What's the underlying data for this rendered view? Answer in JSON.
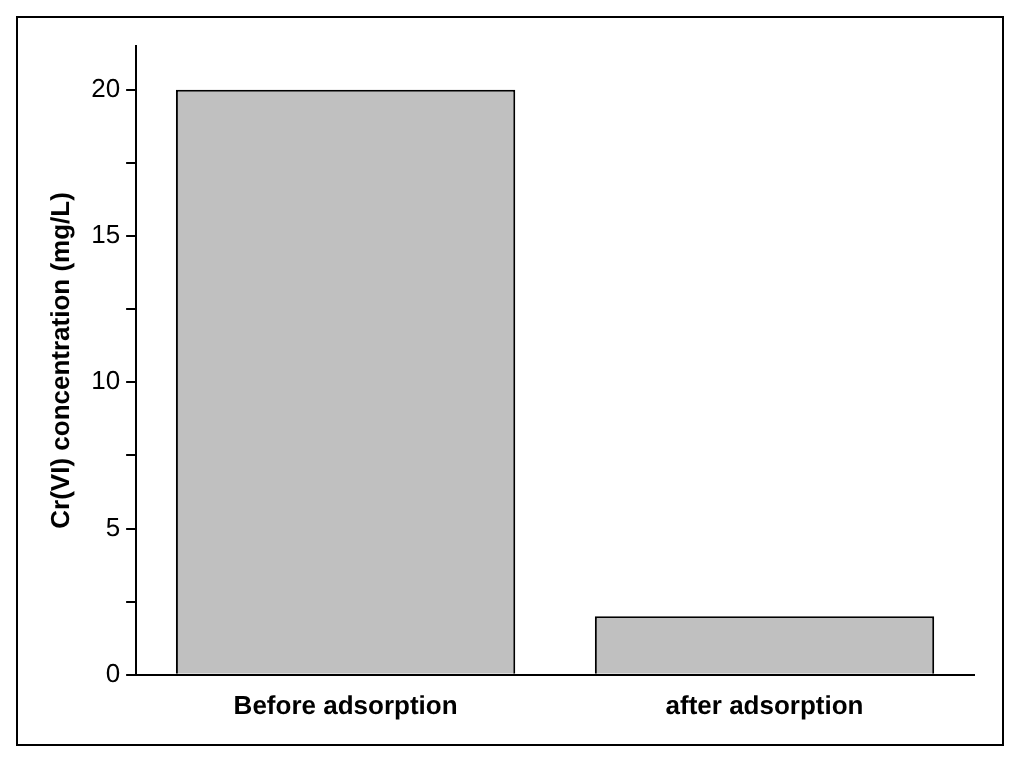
{
  "chart_data": {
    "type": "bar",
    "ylabel": "Cr(VI) concentration (mg/L)",
    "categories": [
      "Before adsorption",
      "after adsorption"
    ],
    "values": [
      20,
      2
    ],
    "color": "#c0c0c0",
    "ylim": [
      0,
      21.5
    ],
    "yticks": [
      0,
      {
        "value": 2.5,
        "label": null
      },
      5,
      {
        "value": 7.5,
        "label": null
      },
      10,
      {
        "value": 12.5,
        "label": null
      },
      15,
      {
        "value": 17.5,
        "label": null
      },
      20
    ],
    "grid": false,
    "legend": false
  }
}
